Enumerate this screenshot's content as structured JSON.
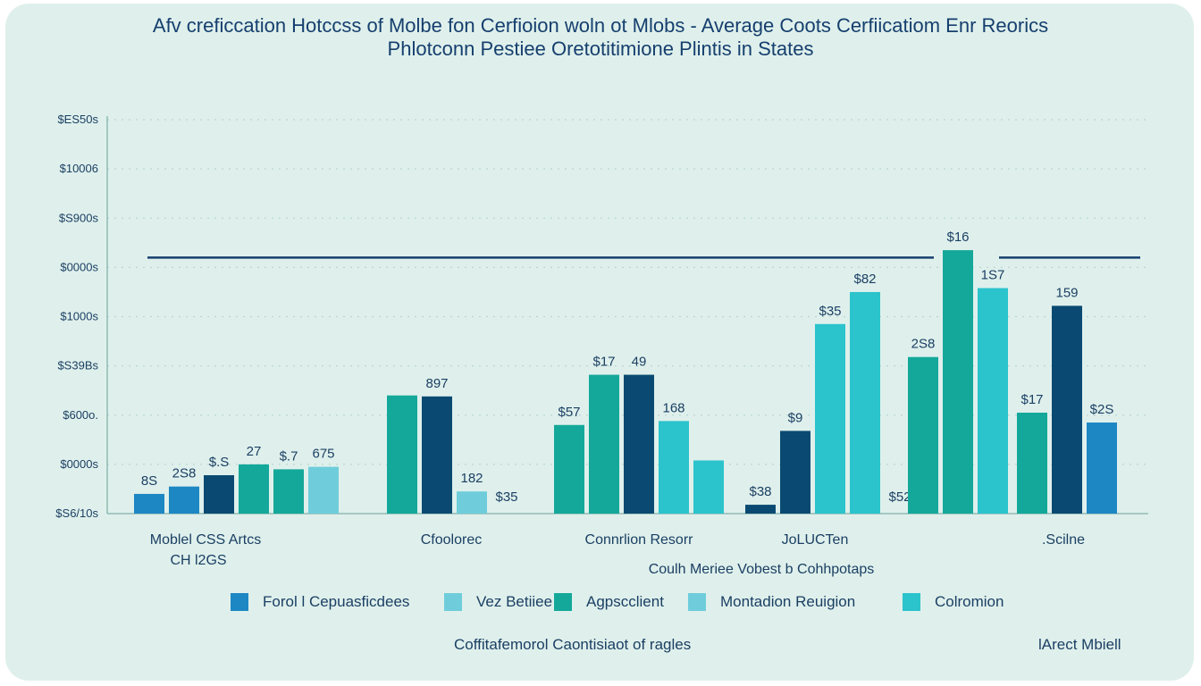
{
  "title_line1": "Afv creficcation Hotccss of Molbe fon Cerfioion woln ot Mlobs - Average Coots Cerfiicatiom Enr Reorics",
  "title_line2": "Phlotconn Pestiee Oretotitimione Plintis in States",
  "xlabel": "Coulh Meriee Vobest b Cohhpotaps",
  "footer_left": "Coffitafemorol Caontisiaot of ragles",
  "footer_right": "lArect Mbiell",
  "colors": {
    "s1": "#1d87c4",
    "s2": "#6fcddb",
    "s3": "#14a89a",
    "s4": "#0a4a72",
    "s5": "#2bc3cc"
  },
  "legend": [
    {
      "label": "Forol l Cepuasficdees",
      "color_key": "s1"
    },
    {
      "label": "Vez Betiiee",
      "color_key": "s2"
    },
    {
      "label": "Agpscclient",
      "color_key": "s3"
    },
    {
      "label": "Montadion Reuigion",
      "color_key": "s2"
    },
    {
      "label": "Colromion",
      "color_key": "s5"
    }
  ],
  "chart_data": {
    "type": "bar",
    "title": "Afv creficcation Hotccss of Molbe fon Cerfioion woln ot Mlobs - Average Coots Cerfiicatiom Enr Reorics",
    "subtitle": "Phlotconn Pestiee Oretotitimione Plintis in States",
    "xlabel": "Coulh Meriee Vobest b Cohhpotaps",
    "ylabel": "",
    "y_tick_labels": [
      "$S6/10s",
      "$0000s",
      "$600o.",
      "$S39Bs",
      "$1000s",
      "$0000s",
      "$S900s",
      "$10006",
      "$ES50s"
    ],
    "ylim": [
      0,
      8
    ],
    "grid": true,
    "legend_position": "bottom",
    "reference_line": 5.2,
    "groups": [
      {
        "category": "Moblel CSS Artcs",
        "category_line2": "CH l2GS",
        "bars": [
          {
            "value": 0.4,
            "color_key": "s1",
            "label": "8S"
          },
          {
            "value": 0.55,
            "color_key": "s1",
            "label": "2S8"
          },
          {
            "value": 0.78,
            "color_key": "s4",
            "label": "$.S"
          },
          {
            "value": 1.0,
            "color_key": "s3",
            "label": "27"
          },
          {
            "value": 0.9,
            "color_key": "s3",
            "label": "$.7"
          },
          {
            "value": 0.95,
            "color_key": "s2",
            "label": "675"
          }
        ]
      },
      {
        "category": "Cfoolorec",
        "category_line2": "",
        "bars": [
          {
            "value": 2.4,
            "color_key": "s3",
            "label": ""
          },
          {
            "value": 2.38,
            "color_key": "s4",
            "label": "897"
          },
          {
            "value": 0.45,
            "color_key": "s2",
            "label": "182"
          },
          {
            "value": 0.0,
            "color_key": "s2",
            "label": "$35"
          }
        ]
      },
      {
        "category": "Connrlion Resorr",
        "category_line2": "",
        "bars": [
          {
            "value": 1.8,
            "color_key": "s3",
            "label": "$57"
          },
          {
            "value": 2.82,
            "color_key": "s3",
            "label": "$17"
          },
          {
            "value": 2.82,
            "color_key": "s4",
            "label": "49"
          },
          {
            "value": 1.88,
            "color_key": "s5",
            "label": "168"
          },
          {
            "value": 1.08,
            "color_key": "s5",
            "label": ""
          }
        ]
      },
      {
        "category": "JoLUCTen",
        "category_line2": "",
        "bars": [
          {
            "value": 0.18,
            "color_key": "s4",
            "label": "$38"
          },
          {
            "value": 1.68,
            "color_key": "s4",
            "label": "$9"
          },
          {
            "value": 3.85,
            "color_key": "s5",
            "label": "$35"
          },
          {
            "value": 4.5,
            "color_key": "s5",
            "label": "$82"
          },
          {
            "value": 0.0,
            "color_key": "s5",
            "label": "$52"
          }
        ]
      },
      {
        "category": "",
        "category_line2": "",
        "bars": [
          {
            "value": 3.18,
            "color_key": "s3",
            "label": "2S8"
          },
          {
            "value": 5.35,
            "color_key": "s3",
            "label": "$16"
          },
          {
            "value": 4.58,
            "color_key": "s5",
            "label": "1S7"
          }
        ]
      },
      {
        "category": ".Scilne",
        "category_line2": "",
        "bars": [
          {
            "value": 2.05,
            "color_key": "s3",
            "label": "$17"
          },
          {
            "value": 4.22,
            "color_key": "s4",
            "label": "159"
          },
          {
            "value": 1.85,
            "color_key": "s1",
            "label": "$2S"
          }
        ]
      }
    ]
  }
}
